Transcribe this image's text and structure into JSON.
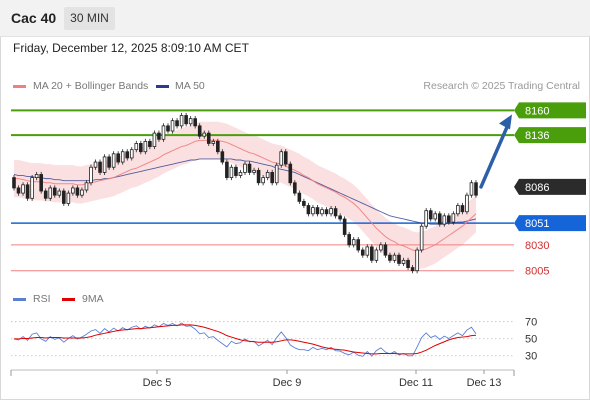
{
  "header": {
    "symbol": "Cac 40",
    "timeframe": "30 MIN"
  },
  "datetime": "Friday, December 12, 2025 8:09:10 AM CET",
  "legend": {
    "ma20_label": "MA 20 + Bollinger Bands",
    "ma50_label": "MA 50",
    "credit": "Research © 2025 Trading Central"
  },
  "colors": {
    "resistance": "#4a9e0c",
    "support": "#1565d8",
    "secondary": "#f08080",
    "current": "#2b2b2b",
    "bands": "#fadadd",
    "ma20": "#f08080",
    "ma50": "#2b3a8c",
    "rsi": "#5a7fd6",
    "rsi_ma": "#e00000"
  },
  "rsi_legend": {
    "rsi_label": "RSI",
    "ma_label": "9MA"
  },
  "chart_data": [
    {
      "type": "candlestick",
      "price_range": [
        7996,
        8170
      ],
      "x_ticks": [
        "Dec 5",
        "Dec 9",
        "Dec 11",
        "Dec 13"
      ],
      "levels": [
        {
          "value": 8160,
          "label": "8160",
          "kind": "resistance"
        },
        {
          "value": 8136,
          "label": "8136",
          "kind": "resistance"
        },
        {
          "value": 8086,
          "label": "8086",
          "kind": "current"
        },
        {
          "value": 8051,
          "label": "8051",
          "kind": "support"
        },
        {
          "value": 8030,
          "label": "8030",
          "kind": "secondary"
        },
        {
          "value": 8005,
          "label": "8005",
          "kind": "secondary"
        }
      ],
      "forecast_arrow": {
        "from": 8086,
        "to": 8156
      },
      "candles": [
        [
          8095,
          8085
        ],
        [
          8085,
          8080
        ],
        [
          8080,
          8088
        ],
        [
          8088,
          8075
        ],
        [
          8075,
          8095
        ],
        [
          8095,
          8098
        ],
        [
          8098,
          8082
        ],
        [
          8082,
          8075
        ],
        [
          8075,
          8085
        ],
        [
          8085,
          8078
        ],
        [
          8078,
          8082
        ],
        [
          8082,
          8070
        ],
        [
          8070,
          8080
        ],
        [
          8080,
          8085
        ],
        [
          8085,
          8078
        ],
        [
          8078,
          8083
        ],
        [
          8083,
          8090
        ],
        [
          8090,
          8105
        ],
        [
          8105,
          8110
        ],
        [
          8110,
          8100
        ],
        [
          8100,
          8115
        ],
        [
          8115,
          8105
        ],
        [
          8105,
          8118
        ],
        [
          8118,
          8110
        ],
        [
          8110,
          8120
        ],
        [
          8120,
          8114
        ],
        [
          8114,
          8122
        ],
        [
          8122,
          8128
        ],
        [
          8128,
          8120
        ],
        [
          8120,
          8130
        ],
        [
          8130,
          8125
        ],
        [
          8125,
          8138
        ],
        [
          8138,
          8132
        ],
        [
          8132,
          8145
        ],
        [
          8145,
          8140
        ],
        [
          8140,
          8150
        ],
        [
          8150,
          8145
        ],
        [
          8145,
          8155
        ],
        [
          8155,
          8147
        ],
        [
          8147,
          8152
        ],
        [
          8152,
          8145
        ],
        [
          8145,
          8135
        ],
        [
          8135,
          8138
        ],
        [
          8138,
          8128
        ],
        [
          8128,
          8130
        ],
        [
          8130,
          8120
        ],
        [
          8120,
          8110
        ],
        [
          8110,
          8095
        ],
        [
          8095,
          8105
        ],
        [
          8105,
          8097
        ],
        [
          8097,
          8100
        ],
        [
          8100,
          8108
        ],
        [
          8108,
          8100
        ],
        [
          8100,
          8102
        ],
        [
          8102,
          8090
        ],
        [
          8090,
          8095
        ],
        [
          8095,
          8100
        ],
        [
          8100,
          8090
        ],
        [
          8090,
          8107
        ],
        [
          8107,
          8120
        ],
        [
          8120,
          8108
        ],
        [
          8108,
          8090
        ],
        [
          8090,
          8080
        ],
        [
          8080,
          8072
        ],
        [
          8072,
          8068
        ],
        [
          8068,
          8060
        ],
        [
          8060,
          8066
        ],
        [
          8066,
          8060
        ],
        [
          8060,
          8064
        ],
        [
          8064,
          8060
        ],
        [
          8060,
          8065
        ],
        [
          8065,
          8058
        ],
        [
          8058,
          8055
        ],
        [
          8055,
          8040
        ],
        [
          8040,
          8030
        ],
        [
          8030,
          8035
        ],
        [
          8035,
          8025
        ],
        [
          8025,
          8020
        ],
        [
          8020,
          8028
        ],
        [
          8028,
          8015
        ],
        [
          8015,
          8025
        ],
        [
          8025,
          8030
        ],
        [
          8030,
          8020
        ],
        [
          8020,
          8015
        ],
        [
          8015,
          8020
        ],
        [
          8020,
          8012
        ],
        [
          8012,
          8015
        ],
        [
          8015,
          8008
        ],
        [
          8008,
          8005
        ],
        [
          8005,
          8025
        ],
        [
          8025,
          8048
        ],
        [
          8048,
          8063
        ],
        [
          8063,
          8055
        ],
        [
          8055,
          8060
        ],
        [
          8060,
          8050
        ],
        [
          8050,
          8058
        ],
        [
          8058,
          8052
        ],
        [
          8052,
          8060
        ],
        [
          8060,
          8068
        ],
        [
          8068,
          8062
        ],
        [
          8062,
          8078
        ],
        [
          8078,
          8090
        ],
        [
          8090,
          8078
        ]
      ],
      "ma20": [
        8094,
        8094,
        8093,
        8092,
        8091,
        8091,
        8091,
        8090,
        8090,
        8089,
        8089,
        8089,
        8089,
        8089,
        8088,
        8088,
        8089,
        8090,
        8091,
        8092,
        8093,
        8094,
        8095,
        8097,
        8099,
        8101,
        8103,
        8104,
        8106,
        8108,
        8110,
        8112,
        8114,
        8117,
        8119,
        8121,
        8123,
        8125,
        8126,
        8128,
        8130,
        8131,
        8131,
        8131,
        8131,
        8131,
        8130,
        8129,
        8127,
        8125,
        8123,
        8121,
        8119,
        8118,
        8116,
        8114,
        8112,
        8110,
        8109,
        8108,
        8106,
        8104,
        8102,
        8100,
        8097,
        8095,
        8092,
        8089,
        8087,
        8085,
        8083,
        8081,
        8078,
        8076,
        8073,
        8070,
        8066,
        8061,
        8056,
        8051,
        8046,
        8042,
        8038,
        8035,
        8033,
        8030,
        8029,
        8027,
        8025,
        8024,
        8025,
        8026,
        8028,
        8030,
        8033,
        8036,
        8039,
        8042,
        8045,
        8048,
        8052,
        8056,
        8060
      ],
      "ma50": [
        8098,
        8097,
        8097,
        8096,
        8096,
        8095,
        8095,
        8094,
        8094,
        8093,
        8093,
        8092,
        8092,
        8092,
        8092,
        8092,
        8092,
        8092,
        8093,
        8093,
        8094,
        8094,
        8095,
        8096,
        8097,
        8098,
        8099,
        8100,
        8101,
        8102,
        8103,
        8104,
        8105,
        8106,
        8107,
        8108,
        8109,
        8110,
        8111,
        8112,
        8112,
        8113,
        8113,
        8113,
        8113,
        8113,
        8113,
        8113,
        8113,
        8112,
        8112,
        8111,
        8111,
        8110,
        8109,
        8108,
        8107,
        8106,
        8104,
        8103,
        8102,
        8101,
        8100,
        8098,
        8096,
        8094,
        8092,
        8090,
        8088,
        8086,
        8084,
        8082,
        8080,
        8078,
        8076,
        8074,
        8072,
        8070,
        8068,
        8066,
        8064,
        8062,
        8060,
        8058,
        8057,
        8056,
        8055,
        8054,
        8053,
        8052,
        8051,
        8051,
        8050,
        8050,
        8050,
        8050,
        8051,
        8051,
        8052,
        8052,
        8053,
        8054,
        8055
      ],
      "rsi_ticks": [
        70,
        50,
        30
      ],
      "rsi": [
        45,
        43,
        50,
        42,
        55,
        58,
        45,
        40,
        50,
        44,
        47,
        38,
        46,
        52,
        45,
        49,
        55,
        62,
        65,
        57,
        67,
        60,
        68,
        62,
        69,
        64,
        70,
        73,
        66,
        72,
        68,
        75,
        71,
        78,
        74,
        78,
        73,
        79,
        72,
        73,
        66,
        56,
        58,
        48,
        50,
        42,
        35,
        28,
        40,
        35,
        37,
        45,
        39,
        40,
        30,
        36,
        42,
        33,
        48,
        60,
        48,
        32,
        26,
        22,
        22,
        20,
        27,
        22,
        25,
        22,
        27,
        20,
        19,
        14,
        11,
        17,
        10,
        8,
        18,
        8,
        20,
        26,
        17,
        13,
        18,
        11,
        14,
        9,
        9,
        28,
        48,
        58,
        48,
        52,
        44,
        51,
        46,
        52,
        58,
        52,
        64,
        70,
        56
      ],
      "rsi_ma": [
        45,
        45,
        46,
        46,
        47,
        48,
        48,
        47,
        48,
        48,
        48,
        47,
        47,
        47,
        47,
        47,
        48,
        50,
        53,
        55,
        57,
        59,
        61,
        63,
        64,
        65,
        66,
        67,
        67,
        68,
        69,
        70,
        71,
        72,
        73,
        74,
        74,
        75,
        75,
        75,
        74,
        72,
        70,
        67,
        64,
        61,
        57,
        52,
        49,
        46,
        43,
        41,
        40,
        39,
        38,
        38,
        38,
        38,
        39,
        41,
        43,
        43,
        42,
        40,
        38,
        36,
        34,
        31,
        28,
        26,
        24,
        23,
        22,
        21,
        19,
        17,
        16,
        15,
        14,
        13,
        13,
        14,
        14,
        14,
        14,
        13,
        13,
        13,
        13,
        14,
        17,
        21,
        26,
        31,
        35,
        39,
        43,
        46,
        48,
        49,
        50,
        52,
        53
      ]
    }
  ]
}
